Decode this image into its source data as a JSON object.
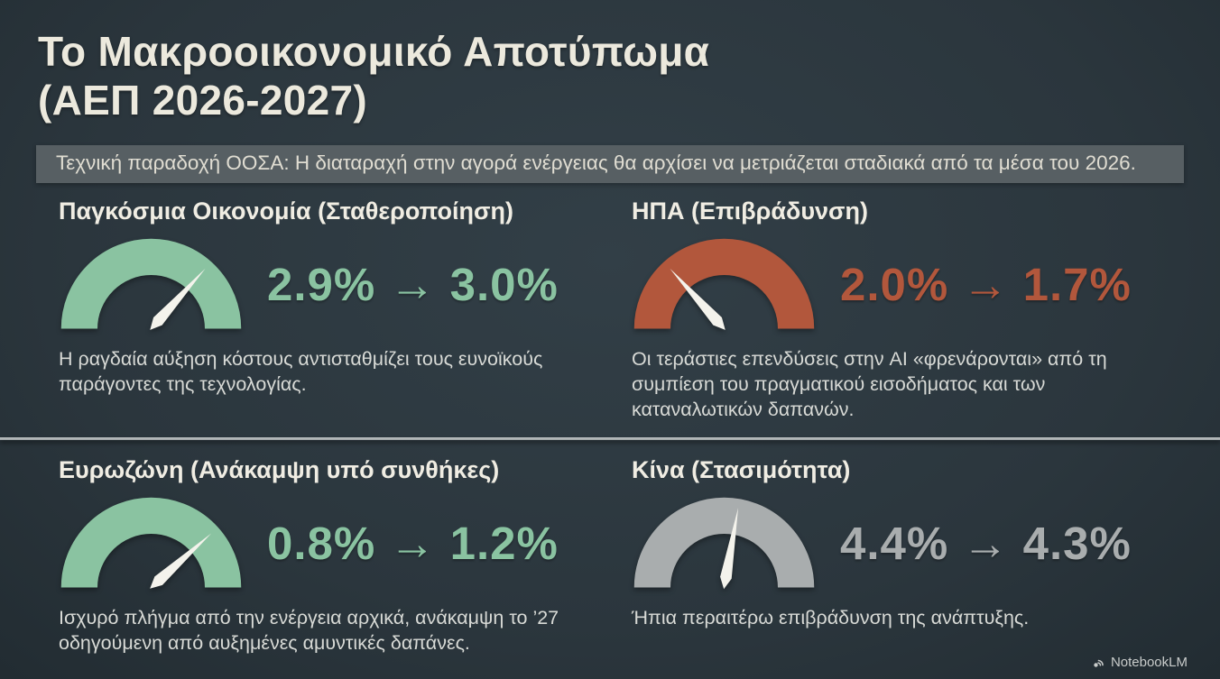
{
  "title": {
    "line1": "Το Μακροοικονομικό Αποτύπωμα",
    "line2": "(ΑΕΠ 2026-2027)"
  },
  "banner": {
    "text": "Τεχνική παραδοχή ΟΟΣΑ: Η διαταραχή στην αγορά ενέργειας θα αρχίσει να μετριάζεται σταδιακά από τα μέσα του 2026."
  },
  "footer": {
    "brand": "NotebookLM"
  },
  "colors": {
    "background": "#2d3940",
    "banner_bg": "#575f63",
    "heading": "#f0ede3",
    "body_text": "#d8dad6",
    "green": "#8ac3a1",
    "rust": "#b2573c",
    "gray": "#a9adae",
    "needle": "#f4f3ec"
  },
  "chart_data": [
    {
      "type": "gauge",
      "title": "Παγκόσμια Οικονομία (Σταθεροποίηση)",
      "region": "Παγκόσμια Οικονομία",
      "trend_label": "Σταθεροποίηση",
      "from": 2.9,
      "to": 3.0,
      "value_text": "2.9% → 3.0%",
      "color": "#8ac3a1",
      "needle_angle": 42,
      "description": "Η ραγδαία αύξηση κόστους αντισταθμίζει τους ευνοϊκούς παράγοντες της τεχνολογίας."
    },
    {
      "type": "gauge",
      "title": "ΗΠΑ (Επιβράδυνση)",
      "region": "ΗΠΑ",
      "trend_label": "Επιβράδυνση",
      "from": 2.0,
      "to": 1.7,
      "value_text": "2.0% → 1.7%",
      "color": "#b2573c",
      "needle_angle": -42,
      "description": "Οι τεράστιες επενδύσεις στην AI «φρενάρονται» από τη συμπίεση του πραγματικού εισοδήματος και των καταναλωτικών δαπανών."
    },
    {
      "type": "gauge",
      "title": "Ευρωζώνη (Ανάκαμψη υπό συνθήκες)",
      "region": "Ευρωζώνη",
      "trend_label": "Ανάκαμψη υπό συνθήκες",
      "from": 0.8,
      "to": 1.2,
      "value_text": "0.8% → 1.2%",
      "color": "#8ac3a1",
      "needle_angle": 48,
      "description": "Ισχυρό πλήγμα από την ενέργεια αρχικά, ανάκαμψη το ’27 οδηγούμενη από αυξημένες αμυντικές δαπάνες."
    },
    {
      "type": "gauge",
      "title": "Κίνα (Στασιμότητα)",
      "region": "Κίνα",
      "trend_label": "Στασιμότητα",
      "from": 4.4,
      "to": 4.3,
      "value_text": "4.4% → 4.3%",
      "color": "#a9adae",
      "needle_angle": 10,
      "description": "Ήπια περαιτέρω επιβράδυνση της ανάπτυξης."
    }
  ]
}
